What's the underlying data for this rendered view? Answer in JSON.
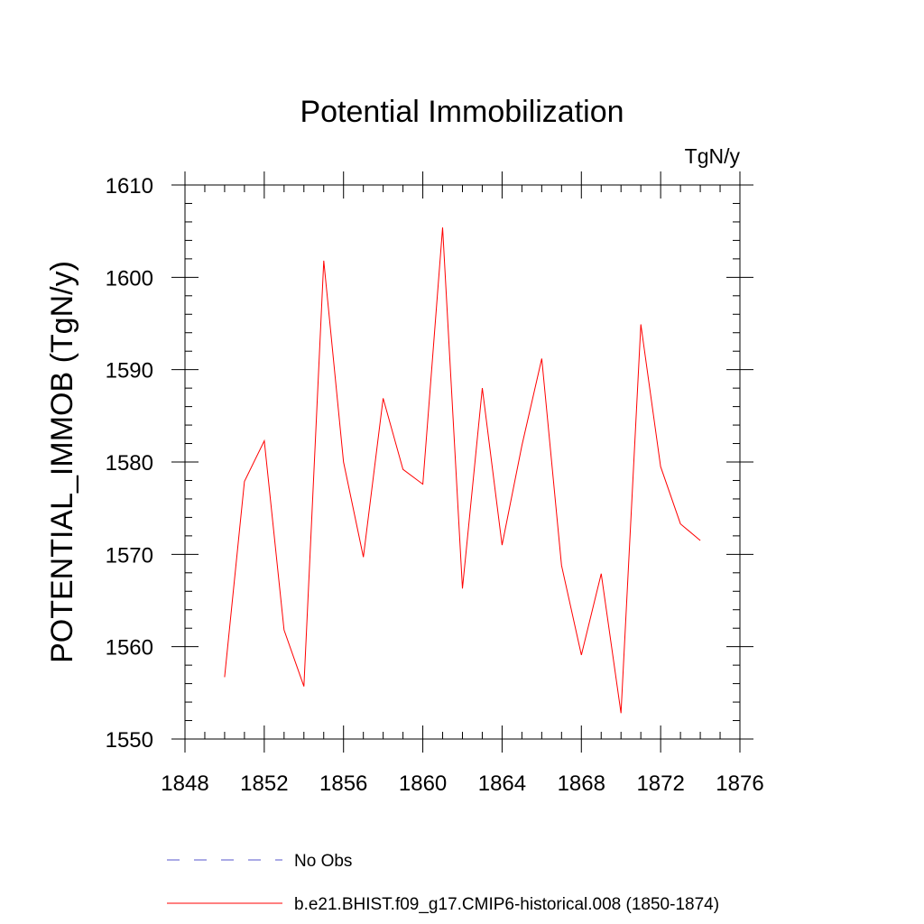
{
  "chart_data": {
    "type": "line",
    "title": "Potential Immobilization",
    "units_label": "TgN/y",
    "ylabel": "POTENTIAL_IMMOB  (TgN/y)",
    "xlabel": "",
    "xlim": [
      1848,
      1876
    ],
    "ylim": [
      1550,
      1610
    ],
    "x_ticks": [
      1848,
      1852,
      1856,
      1860,
      1864,
      1868,
      1872,
      1876
    ],
    "y_ticks": [
      1550,
      1560,
      1570,
      1580,
      1590,
      1600,
      1610
    ],
    "x_minor_step": 1,
    "y_minor_step": 2,
    "grid": false,
    "legend_position": "bottom",
    "series": [
      {
        "name": "b.e21.BHIST.f09_g17.CMIP6-historical.008 (1850-1874)",
        "color": "#ff0000",
        "style": "solid",
        "x": [
          1850,
          1851,
          1852,
          1853,
          1854,
          1855,
          1856,
          1857,
          1858,
          1859,
          1860,
          1861,
          1862,
          1863,
          1864,
          1865,
          1866,
          1867,
          1868,
          1869,
          1870,
          1871,
          1872,
          1873,
          1874
        ],
        "y": [
          1556.7,
          1577.9,
          1582.3,
          1561.8,
          1555.7,
          1601.8,
          1580.0,
          1569.7,
          1586.9,
          1579.2,
          1577.6,
          1605.4,
          1566.3,
          1588.0,
          1571.0,
          1581.8,
          1591.2,
          1568.8,
          1559.1,
          1567.9,
          1552.8,
          1594.9,
          1579.5,
          1573.3,
          1571.5
        ]
      }
    ],
    "legend": [
      {
        "label": "No Obs",
        "color": "#5555cc",
        "style": "dashed"
      },
      {
        "label": "b.e21.BHIST.f09_g17.CMIP6-historical.008 (1850-1874)",
        "color": "#ff0000",
        "style": "solid"
      }
    ]
  }
}
